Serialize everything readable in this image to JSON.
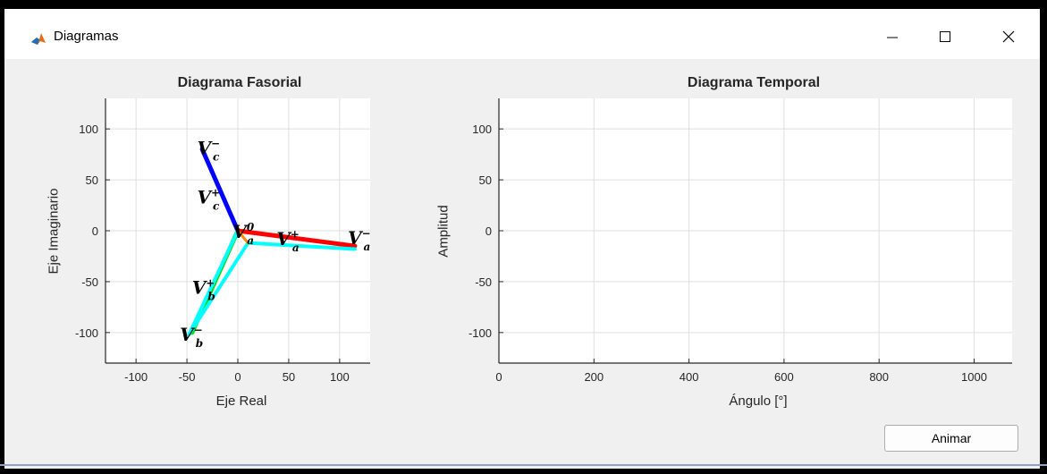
{
  "window": {
    "title": "Diagramas",
    "controls": [
      "minimize",
      "maximize",
      "close"
    ]
  },
  "phasor_plot": {
    "title": "Diagrama Fasorial",
    "xlabel": "Eje Real",
    "ylabel": "Eje Imaginario",
    "xticks": [
      "-100",
      "-50",
      "0",
      "50",
      "100"
    ],
    "yticks": [
      "100",
      "50",
      "0",
      "-50",
      "-100"
    ],
    "labels": {
      "vc_neg": "V",
      "vc_neg_sup": "−",
      "vc_neg_sub": "c",
      "vc_pos": "V",
      "vc_pos_sup": "+",
      "vc_pos_sub": "c",
      "va_zero": "V",
      "va_zero_sup": "0",
      "va_zero_sub": "a",
      "va_pos": "V",
      "va_pos_sup": "+",
      "va_pos_sub": "a",
      "va_neg": "V",
      "va_neg_sup": "−",
      "va_neg_sub": "a",
      "vb_pos": "V",
      "vb_pos_sup": "+",
      "vb_pos_sub": "b",
      "vb_neg": "V",
      "vb_neg_sup": "−",
      "vb_neg_sub": "b"
    }
  },
  "time_plot": {
    "title": "Diagrama Temporal",
    "xlabel": "Ángulo [°]",
    "ylabel": "Amplitud",
    "xticks": [
      "0",
      "200",
      "400",
      "600",
      "800",
      "1000"
    ],
    "yticks": [
      "100",
      "50",
      "0",
      "-50",
      "-100"
    ]
  },
  "animate_button": {
    "label": "Animar"
  },
  "chart_data": [
    {
      "type": "line",
      "title": "Diagrama Fasorial",
      "xlabel": "Eje Real",
      "ylabel": "Eje Imaginario",
      "xlim": [
        -130,
        130
      ],
      "ylim": [
        -130,
        130
      ],
      "grid": true,
      "series": [
        {
          "color": "#0000ff",
          "x": [
            0,
            -35
          ],
          "y": [
            0,
            80
          ]
        },
        {
          "color": "#00d700",
          "x": [
            0,
            -45
          ],
          "y": [
            0,
            -100
          ]
        },
        {
          "color": "#ff0000",
          "x": [
            0,
            115
          ],
          "y": [
            0,
            -15
          ]
        },
        {
          "color": "#00ffff",
          "x": [
            0,
            -48,
            10,
            115
          ],
          "y": [
            0,
            -102,
            -12,
            -18
          ]
        },
        {
          "color": "#ff8c00",
          "x": [
            0,
            10
          ],
          "y": [
            0,
            -12
          ]
        }
      ]
    },
    {
      "type": "line",
      "title": "Diagrama Temporal",
      "xlabel": "Ángulo [°]",
      "ylabel": "Amplitud",
      "xlim": [
        0,
        1080
      ],
      "ylim": [
        -130,
        130
      ],
      "grid": true,
      "series": []
    }
  ]
}
